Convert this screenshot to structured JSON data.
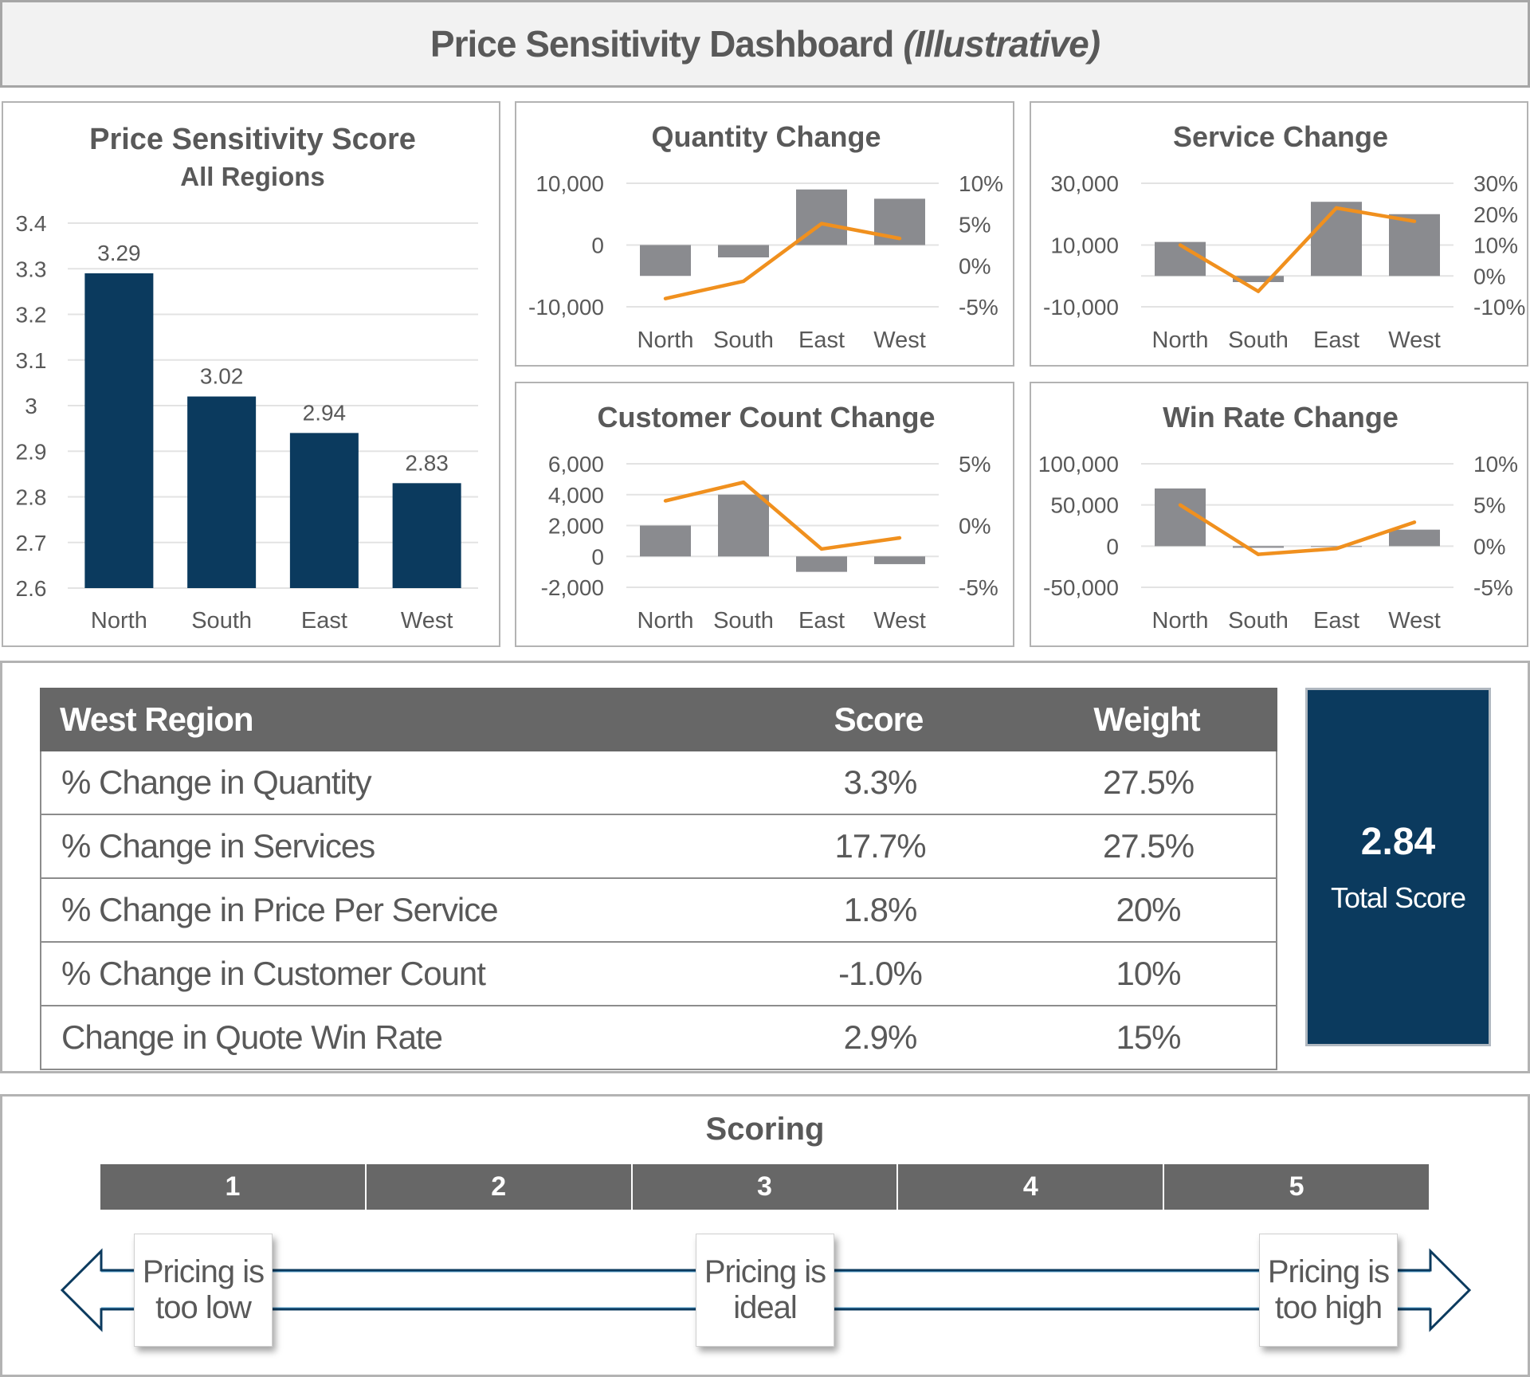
{
  "header": {
    "title": "Price Sensitivity Dashboard",
    "title_suffix": "(Illustrative)"
  },
  "colors": {
    "navy": "#0b3a5e",
    "bar_gray": "#8a8b8f",
    "line_orange": "#f0901e",
    "table_header": "#676767"
  },
  "chart_data": [
    {
      "type": "bar",
      "title": "Price Sensitivity Score",
      "subtitle": "All Regions",
      "categories": [
        "North",
        "South",
        "East",
        "West"
      ],
      "values": [
        3.29,
        3.02,
        2.94,
        2.83
      ],
      "data_labels": [
        "3.29",
        "3.02",
        "2.94",
        "2.83"
      ],
      "ylim": [
        2.6,
        3.4
      ],
      "y_ticks": [
        3.4,
        3.3,
        3.2,
        3.1,
        3.0,
        2.9,
        2.8,
        2.7,
        2.6
      ],
      "y_tick_labels": [
        "3.4",
        "3.3",
        "3.2",
        "3.1",
        "3",
        "2.9",
        "2.8",
        "2.7",
        "2.6"
      ],
      "grid": true,
      "color": "#0b3a5e"
    },
    {
      "type": "bar+line",
      "title": "Quantity Change",
      "categories": [
        "North",
        "South",
        "East",
        "West"
      ],
      "bar_values": [
        -5000,
        -2000,
        9000,
        7500
      ],
      "line_values_pct": [
        -4.0,
        -1.9,
        5.1,
        3.3
      ],
      "left_ticks": [
        10000,
        0,
        -10000
      ],
      "left_tick_labels": [
        "10,000",
        "0",
        "-10,000"
      ],
      "right_ticks": [
        10,
        5,
        0,
        -5
      ],
      "right_tick_labels": [
        "10%",
        "5%",
        "0%",
        "-5%"
      ],
      "grid": true
    },
    {
      "type": "bar+line",
      "title": "Service Change",
      "categories": [
        "North",
        "South",
        "East",
        "West"
      ],
      "bar_values": [
        11000,
        -2000,
        24000,
        20000
      ],
      "line_values_pct": [
        10.0,
        -5.0,
        22.0,
        17.7
      ],
      "left_ticks": [
        30000,
        10000,
        -10000
      ],
      "left_tick_labels": [
        "30,000",
        "10,000",
        "-10,000"
      ],
      "right_ticks": [
        30,
        20,
        10,
        0,
        -10
      ],
      "right_tick_labels": [
        "30%",
        "20%",
        "10%",
        "0%",
        "-10%"
      ],
      "grid": true
    },
    {
      "type": "bar+line",
      "title": "Customer Count Change",
      "categories": [
        "North",
        "South",
        "East",
        "West"
      ],
      "bar_values": [
        2000,
        4000,
        -1000,
        -500
      ],
      "line_values_pct": [
        2.0,
        3.5,
        -1.9,
        -1.0
      ],
      "left_ticks": [
        6000,
        4000,
        2000,
        0,
        -2000
      ],
      "left_tick_labels": [
        "6,000",
        "4,000",
        "2,000",
        "0",
        "-2,000"
      ],
      "right_ticks": [
        5,
        0,
        -5
      ],
      "right_tick_labels": [
        "5%",
        "0%",
        "-5%"
      ],
      "grid": true
    },
    {
      "type": "bar+line",
      "title": "Win Rate Change",
      "categories": [
        "North",
        "South",
        "East",
        "West"
      ],
      "bar_values": [
        70000,
        -2000,
        0,
        20000
      ],
      "line_values_pct": [
        5.0,
        -1.0,
        -0.3,
        2.9
      ],
      "left_ticks": [
        100000,
        50000,
        0,
        -50000
      ],
      "left_tick_labels": [
        "100,000",
        "50,000",
        "0",
        "-50,000"
      ],
      "right_ticks": [
        10,
        5,
        0,
        -5
      ],
      "right_tick_labels": [
        "10%",
        "5%",
        "0%",
        "-5%"
      ],
      "grid": true
    }
  ],
  "table": {
    "headers": [
      "West Region",
      "Score",
      "Weight"
    ],
    "rows": [
      [
        "% Change in Quantity",
        "3.3%",
        "27.5%"
      ],
      [
        "% Change in Services",
        "17.7%",
        "27.5%"
      ],
      [
        "% Change in Price Per Service",
        "1.8%",
        "20%"
      ],
      [
        "% Change in Customer Count",
        "-1.0%",
        "10%"
      ],
      [
        "Change in Quote Win Rate",
        "2.9%",
        "15%"
      ]
    ]
  },
  "total": {
    "value": "2.84",
    "label": "Total Score"
  },
  "scoring": {
    "title": "Scoring",
    "levels": [
      "1",
      "2",
      "3",
      "4",
      "5"
    ],
    "notes": [
      "Pricing is\ntoo low",
      "Pricing is\nideal",
      "Pricing is\ntoo high"
    ]
  }
}
